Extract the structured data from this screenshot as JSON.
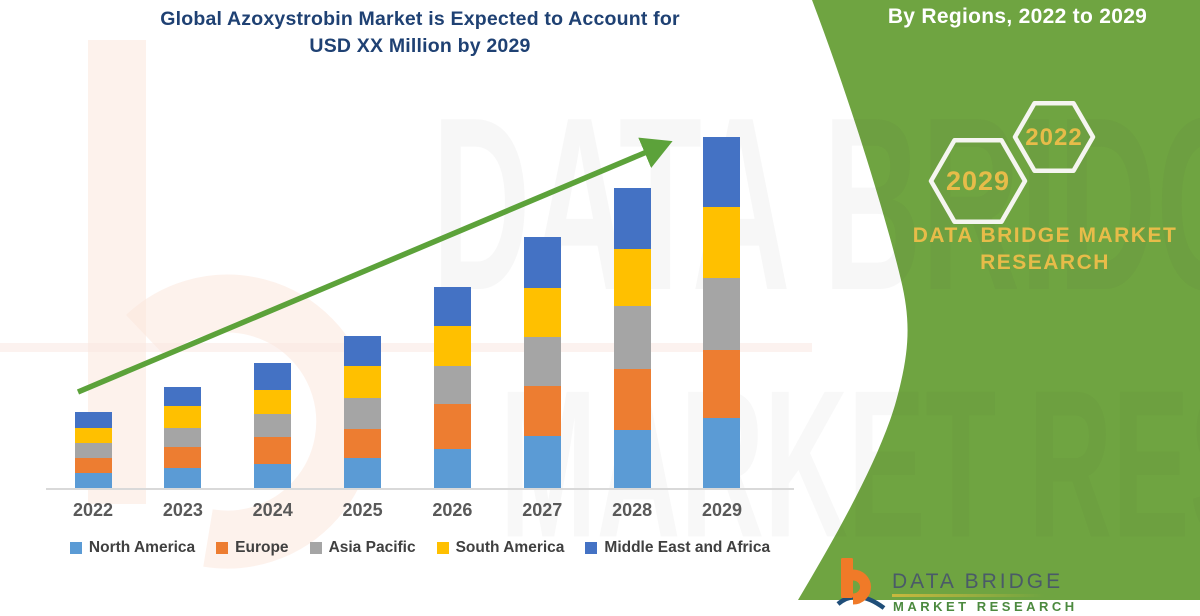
{
  "title": {
    "line1": "Global Azoxystrobin Market is Expected to Account for",
    "line2": "USD XX Million by 2029",
    "color": "#1F4173"
  },
  "chart_data": {
    "type": "bar",
    "stacked": true,
    "title": "Global Azoxystrobin Market is Expected to Account for USD XX Million by 2029",
    "categories": [
      "2022",
      "2023",
      "2024",
      "2025",
      "2026",
      "2027",
      "2028",
      "2029"
    ],
    "series": [
      {
        "name": "North America",
        "color": "#5B9BD5",
        "values": [
          15,
          20,
          24,
          30,
          39,
          52,
          58,
          70
        ]
      },
      {
        "name": "Europe",
        "color": "#ED7D31",
        "values": [
          15,
          21,
          27,
          29,
          45,
          50,
          61,
          68
        ]
      },
      {
        "name": "Asia Pacific",
        "color": "#A5A5A5",
        "values": [
          15,
          19,
          23,
          31,
          38,
          49,
          63,
          72
        ]
      },
      {
        "name": "South America",
        "color": "#FFC000",
        "values": [
          15,
          22,
          24,
          32,
          40,
          49,
          57,
          71
        ]
      },
      {
        "name": "Middle East and Africa",
        "color": "#4472C4",
        "values": [
          16,
          19,
          27,
          30,
          39,
          51,
          61,
          70
        ]
      }
    ],
    "totals": [
      76,
      101,
      125,
      152,
      201,
      251,
      300,
      351
    ],
    "units": "relative units (y-axis unlabeled; market value shown as USD XX Million)",
    "xlabel": "",
    "ylabel": "",
    "y_axis_visible": false,
    "grid": false,
    "legend_position": "bottom",
    "trend_arrow": {
      "present": true,
      "color": "#5CA23A",
      "direction": "up",
      "from_category": "2022",
      "to_category": "2029"
    }
  },
  "sidebar": {
    "heading": "By Regions, 2022 to 2029",
    "panel_color": "#6FA441",
    "accent_gold": "#E7BC49",
    "hexagons": [
      {
        "label": "2029"
      },
      {
        "label": "2022"
      }
    ],
    "brand": {
      "line1": "DATA BRIDGE MARKET",
      "line2": "RESEARCH"
    },
    "logo": {
      "name": "DATA BRIDGE",
      "tagline": "MARKET RESEARCH"
    }
  },
  "watermarks": {
    "chart_text_line1": "DATA BRIDGE",
    "chart_text_line2": "MARKET RESE",
    "logo_letter": "b"
  }
}
